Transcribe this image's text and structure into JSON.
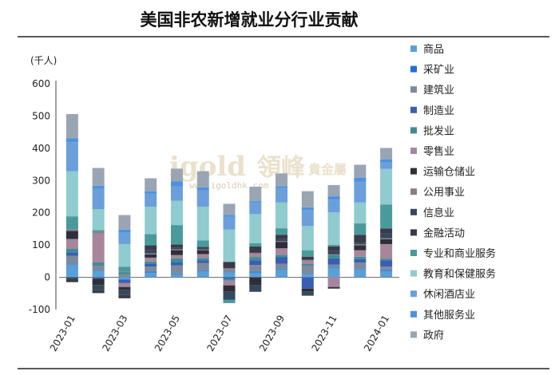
{
  "chart_data": {
    "type": "bar",
    "stacked": true,
    "title": "美国非农新增就业分行业贡献",
    "unit_label": "(千人)",
    "ylim": [
      -100,
      600
    ],
    "yticks": [
      -100,
      0,
      100,
      200,
      300,
      400,
      500,
      600
    ],
    "legend_position": "right",
    "categories": [
      "2023-01",
      "2023-02",
      "2023-03",
      "2023-04",
      "2023-05",
      "2023-06",
      "2023-07",
      "2023-08",
      "2023-09",
      "2023-10",
      "2023-11",
      "2023-12",
      "2024-01"
    ],
    "xtick_labels": [
      "2023-01",
      "",
      "2023-03",
      "",
      "2023-05",
      "",
      "2023-07",
      "",
      "2023-09",
      "",
      "2023-11",
      "",
      "2024-01"
    ],
    "series": [
      {
        "name": "商品",
        "color": "#5aa0d6",
        "values": [
          40,
          20,
          -6,
          15,
          10,
          20,
          15,
          15,
          25,
          10,
          30,
          25,
          20
        ]
      },
      {
        "name": "采矿业",
        "color": "#1f6fd6",
        "values": [
          2,
          1,
          -2,
          3,
          2,
          2,
          1,
          3,
          2,
          1,
          2,
          1,
          3
        ]
      },
      {
        "name": "建筑业",
        "color": "#7d8a9c",
        "values": [
          25,
          15,
          9,
          15,
          25,
          22,
          10,
          20,
          15,
          25,
          7,
          20,
          10
        ]
      },
      {
        "name": "制造业",
        "color": "#3a5fb0",
        "values": [
          10,
          -4,
          -10,
          8,
          10,
          8,
          -5,
          15,
          20,
          -35,
          20,
          10,
          20
        ]
      },
      {
        "name": "批发业",
        "color": "#3f8d96",
        "values": [
          12,
          10,
          6,
          8,
          12,
          8,
          -5,
          10,
          8,
          5,
          10,
          8,
          5
        ]
      },
      {
        "name": "零售业",
        "color": "#a7869c",
        "values": [
          30,
          90,
          -12,
          12,
          10,
          12,
          -15,
          10,
          20,
          10,
          -30,
          20,
          45
        ]
      },
      {
        "name": "运输仓储业",
        "color": "#2f2f3a",
        "values": [
          25,
          -20,
          -10,
          10,
          15,
          12,
          -20,
          -25,
          20,
          -10,
          -5,
          15,
          15
        ]
      },
      {
        "name": "公用事业",
        "color": "#8a7d86",
        "values": [
          5,
          5,
          3,
          3,
          3,
          2,
          2,
          3,
          2,
          3,
          2,
          3,
          3
        ]
      },
      {
        "name": "信息业",
        "color": "#34495e",
        "values": [
          -5,
          -15,
          -15,
          10,
          5,
          3,
          -25,
          -20,
          8,
          -12,
          10,
          5,
          15
        ]
      },
      {
        "name": "金融活动",
        "color": "#3a3a48",
        "values": [
          -10,
          -10,
          -10,
          15,
          10,
          5,
          20,
          20,
          12,
          10,
          15,
          25,
          15
        ]
      },
      {
        "name": "专业和商业服务",
        "color": "#4a9a9c",
        "values": [
          40,
          5,
          15,
          35,
          60,
          20,
          -10,
          10,
          20,
          20,
          5,
          35,
          75
        ]
      },
      {
        "name": "教育和保健服务",
        "color": "#8fcbcf",
        "values": [
          140,
          65,
          70,
          85,
          75,
          105,
          100,
          90,
          80,
          75,
          100,
          65,
          110
        ]
      },
      {
        "name": "休闲酒店业",
        "color": "#6a9fdb",
        "values": [
          90,
          65,
          35,
          40,
          45,
          50,
          40,
          35,
          45,
          50,
          40,
          65,
          20
        ]
      },
      {
        "name": "其他服务业",
        "color": "#4c92e0",
        "values": [
          12,
          8,
          10,
          8,
          15,
          10,
          5,
          5,
          5,
          8,
          10,
          12,
          10
        ]
      },
      {
        "name": "政府",
        "color": "#9aa5b4",
        "values": [
          75,
          55,
          45,
          40,
          40,
          50,
          35,
          45,
          40,
          50,
          35,
          40,
          35
        ]
      }
    ]
  },
  "watermark": {
    "brand": "igold",
    "cn": "領峰",
    "cn2": "貴金屬",
    "url": "www.igoldhk.com"
  }
}
